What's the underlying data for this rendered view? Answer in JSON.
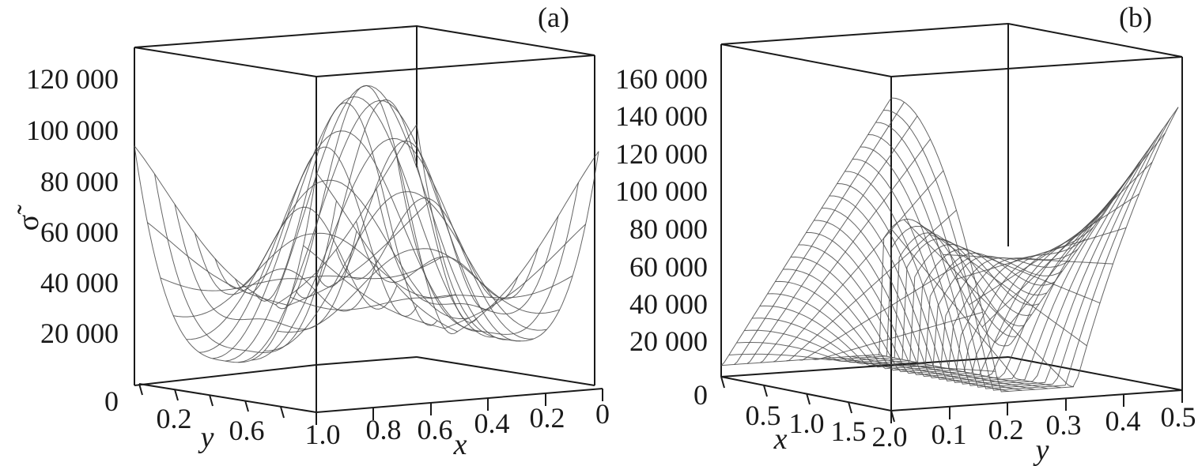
{
  "chart_data": [
    {
      "type": "surface3d",
      "panel_label": "(a)",
      "zlabel": "σ̃",
      "z_ticks": [
        "0",
        "20 000",
        "40 000",
        "60 000",
        "80 000",
        "100 000",
        "120 000"
      ],
      "zlim": [
        0,
        130000
      ],
      "xlabel": "x",
      "x_ticks": [
        "1.0",
        "0.8",
        "0.6",
        "0.4",
        "0.2",
        "0"
      ],
      "xlim": [
        0,
        1
      ],
      "ylabel": "y",
      "y_ticks": [
        "0.2",
        "0.6"
      ],
      "ylim": [
        0,
        1
      ],
      "peak_value": 120000,
      "edge_values": {
        "left_corner": 91000,
        "right_corner": 102000,
        "minimum": 15000
      },
      "grid": true
    },
    {
      "type": "surface3d",
      "panel_label": "(b)",
      "zlabel": "",
      "z_ticks": [
        "0",
        "20 000",
        "40 000",
        "60 000",
        "80 000",
        "100 000",
        "120 000",
        "140 000",
        "160 000"
      ],
      "zlim": [
        0,
        175000
      ],
      "xlabel": "x",
      "x_ticks": [
        "0.5",
        "1.0",
        "1.5",
        "2.0"
      ],
      "xlim": [
        0,
        2
      ],
      "ylabel": "y",
      "y_ticks": [
        "0.1",
        "0.2",
        "0.3",
        "0.4",
        "0.5"
      ],
      "ylim": [
        0,
        0.5
      ],
      "peak_value": 165000,
      "edge_values": {
        "back_peak": 162000,
        "minimum": 10000
      },
      "grid": true
    }
  ]
}
